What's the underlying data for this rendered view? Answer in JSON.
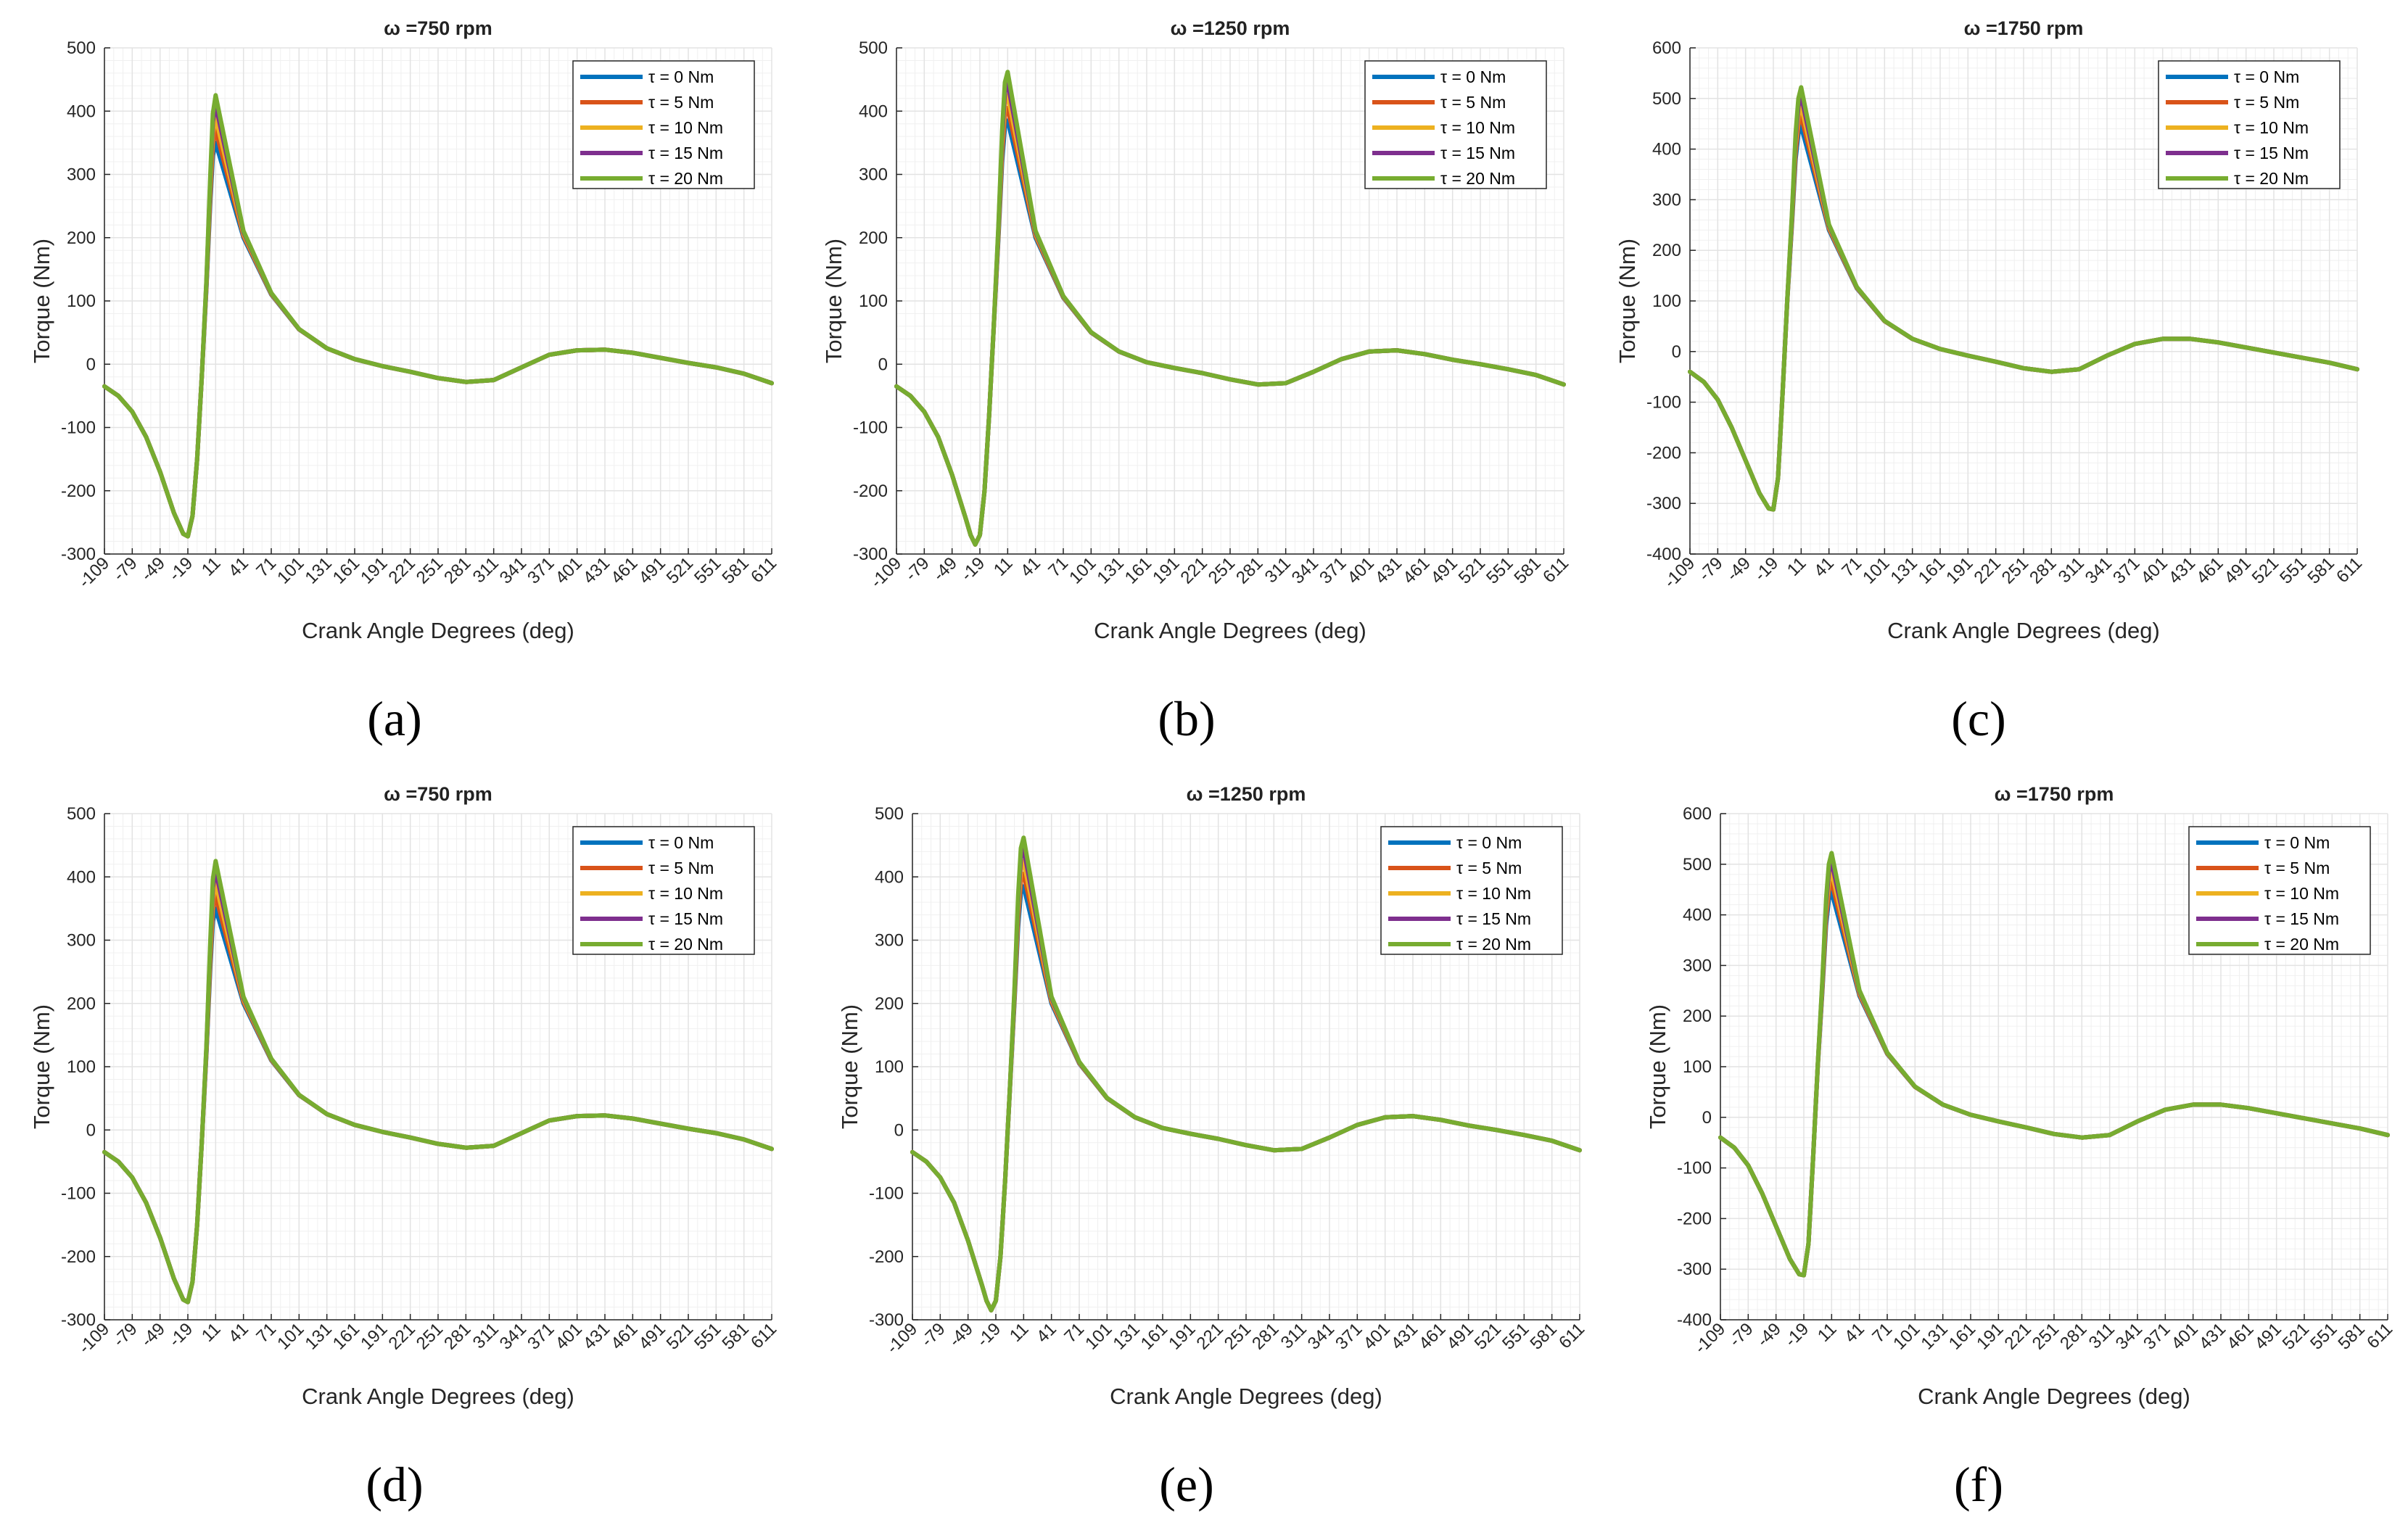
{
  "figure": {
    "captions": [
      "(a)",
      "(b)",
      "(c)",
      "(d)",
      "(e)",
      "(f)"
    ]
  },
  "colors": {
    "tau0": "#0072BD",
    "tau5": "#D95319",
    "tau10": "#EDB120",
    "tau15": "#7E2F8E",
    "tau20": "#77AC30"
  },
  "chart_data": [
    {
      "id": "a",
      "type": "line",
      "title": "ω =750 rpm",
      "omega_rpm": 750,
      "xlabel": "Crank Angle Degrees (deg)",
      "ylabel": "Torque (Nm)",
      "xlim": [
        -109,
        611
      ],
      "ylim": [
        -300,
        500
      ],
      "xticks": [
        -109,
        -79,
        -49,
        -19,
        11,
        41,
        71,
        101,
        131,
        161,
        191,
        221,
        251,
        281,
        311,
        341,
        371,
        401,
        431,
        461,
        491,
        521,
        551,
        581,
        611
      ],
      "yticks": [
        -300,
        -200,
        -100,
        0,
        100,
        200,
        300,
        400,
        500
      ],
      "grid": true,
      "legend_location": "top-right",
      "series": [
        {
          "name": "τ = 0 Nm",
          "torque_nm": 0,
          "peak": 350
        },
        {
          "name": "τ = 5 Nm",
          "torque_nm": 5,
          "peak": 370
        },
        {
          "name": "τ = 10 Nm",
          "torque_nm": 10,
          "peak": 390
        },
        {
          "name": "τ = 15 Nm",
          "torque_nm": 15,
          "peak": 410
        },
        {
          "name": "τ = 20 Nm",
          "torque_nm": 20,
          "peak": 425
        }
      ],
      "shared_curve": {
        "x": [
          -109,
          -94,
          -79,
          -64,
          -49,
          -34,
          -24,
          -19,
          -14,
          -9,
          -4,
          1,
          5,
          8,
          11
        ],
        "y": [
          -35,
          -50,
          -75,
          -115,
          -170,
          -235,
          -268,
          -272,
          -240,
          -150,
          -20,
          120,
          250,
          330,
          350
        ]
      },
      "tail": {
        "x": [
          41,
          71,
          101,
          131,
          161,
          191,
          221,
          251,
          281,
          311,
          341,
          371,
          401,
          431,
          461,
          491,
          521,
          551,
          581,
          611
        ],
        "y": [
          200,
          110,
          55,
          25,
          8,
          -3,
          -12,
          -22,
          -28,
          -25,
          -5,
          15,
          22,
          23,
          18,
          10,
          2,
          -5,
          -15,
          -30
        ]
      }
    },
    {
      "id": "b",
      "type": "line",
      "title": "ω =1250 rpm",
      "omega_rpm": 1250,
      "xlabel": "Crank Angle Degrees (deg)",
      "ylabel": "Torque (Nm)",
      "xlim": [
        -109,
        611
      ],
      "ylim": [
        -300,
        500
      ],
      "xticks": [
        -109,
        -79,
        -49,
        -19,
        11,
        41,
        71,
        101,
        131,
        161,
        191,
        221,
        251,
        281,
        311,
        341,
        371,
        401,
        431,
        461,
        491,
        521,
        551,
        581,
        611
      ],
      "yticks": [
        -300,
        -200,
        -100,
        0,
        100,
        200,
        300,
        400,
        500
      ],
      "grid": true,
      "legend_location": "top-right",
      "series": [
        {
          "name": "τ = 0 Nm",
          "torque_nm": 0,
          "peak": 385
        },
        {
          "name": "τ = 5 Nm",
          "torque_nm": 5,
          "peak": 405
        },
        {
          "name": "τ = 10 Nm",
          "torque_nm": 10,
          "peak": 425
        },
        {
          "name": "τ = 15 Nm",
          "torque_nm": 15,
          "peak": 445
        },
        {
          "name": "τ = 20 Nm",
          "torque_nm": 20,
          "peak": 462
        }
      ],
      "shared_curve": {
        "x": [
          -109,
          -94,
          -79,
          -64,
          -49,
          -34,
          -29,
          -24,
          -19,
          -14,
          -9,
          -4,
          1,
          5,
          8,
          11
        ],
        "y": [
          -35,
          -50,
          -75,
          -115,
          -175,
          -245,
          -270,
          -285,
          -270,
          -200,
          -80,
          60,
          200,
          320,
          375,
          385
        ]
      },
      "tail": {
        "x": [
          41,
          71,
          101,
          131,
          161,
          191,
          221,
          251,
          281,
          311,
          341,
          371,
          401,
          431,
          461,
          491,
          521,
          551,
          581,
          611
        ],
        "y": [
          200,
          105,
          50,
          20,
          3,
          -6,
          -14,
          -24,
          -32,
          -30,
          -12,
          8,
          20,
          22,
          16,
          7,
          0,
          -8,
          -17,
          -32
        ]
      }
    },
    {
      "id": "c",
      "type": "line",
      "title": "ω =1750 rpm",
      "omega_rpm": 1750,
      "xlabel": "Crank Angle Degrees (deg)",
      "ylabel": "Torque (Nm)",
      "xlim": [
        -109,
        611
      ],
      "ylim": [
        -400,
        600
      ],
      "xticks": [
        -109,
        -79,
        -49,
        -19,
        11,
        41,
        71,
        101,
        131,
        161,
        191,
        221,
        251,
        281,
        311,
        341,
        371,
        401,
        431,
        461,
        491,
        521,
        551,
        581,
        611
      ],
      "yticks": [
        -400,
        -300,
        -200,
        -100,
        0,
        100,
        200,
        300,
        400,
        500,
        600
      ],
      "grid": true,
      "legend_location": "top-right",
      "series": [
        {
          "name": "τ = 0 Nm",
          "torque_nm": 0,
          "peak": 445
        },
        {
          "name": "τ = 5 Nm",
          "torque_nm": 5,
          "peak": 465
        },
        {
          "name": "τ = 10 Nm",
          "torque_nm": 10,
          "peak": 485
        },
        {
          "name": "τ = 15 Nm",
          "torque_nm": 15,
          "peak": 505
        },
        {
          "name": "τ = 20 Nm",
          "torque_nm": 20,
          "peak": 522
        }
      ],
      "shared_curve": {
        "x": [
          -109,
          -94,
          -79,
          -64,
          -49,
          -34,
          -24,
          -19,
          -14,
          -9,
          -4,
          1,
          5,
          8,
          11
        ],
        "y": [
          -40,
          -60,
          -95,
          -150,
          -215,
          -280,
          -310,
          -312,
          -250,
          -80,
          100,
          250,
          380,
          430,
          445
        ]
      },
      "tail": {
        "x": [
          41,
          71,
          101,
          131,
          161,
          191,
          221,
          251,
          281,
          311,
          341,
          371,
          401,
          431,
          461,
          491,
          521,
          551,
          581,
          611
        ],
        "y": [
          240,
          125,
          60,
          25,
          5,
          -8,
          -20,
          -33,
          -40,
          -35,
          -8,
          15,
          25,
          25,
          18,
          8,
          -2,
          -12,
          -22,
          -35
        ]
      }
    },
    {
      "id": "d",
      "type": "line",
      "title": "ω =750 rpm",
      "omega_rpm": 750,
      "xlabel": "Crank Angle Degrees (deg)",
      "ylabel": "Torque (Nm)",
      "xlim": [
        -109,
        611
      ],
      "ylim": [
        -300,
        500
      ],
      "xticks": [
        -109,
        -79,
        -49,
        -19,
        11,
        41,
        71,
        101,
        131,
        161,
        191,
        221,
        251,
        281,
        311,
        341,
        371,
        401,
        431,
        461,
        491,
        521,
        551,
        581,
        611
      ],
      "yticks": [
        -300,
        -200,
        -100,
        0,
        100,
        200,
        300,
        400,
        500
      ],
      "grid": true,
      "legend_location": "top-right",
      "series": [
        {
          "name": "τ = 0 Nm",
          "torque_nm": 0,
          "peak": 350
        },
        {
          "name": "τ = 5 Nm",
          "torque_nm": 5,
          "peak": 370
        },
        {
          "name": "τ = 10 Nm",
          "torque_nm": 10,
          "peak": 390
        },
        {
          "name": "τ = 15 Nm",
          "torque_nm": 15,
          "peak": 410
        },
        {
          "name": "τ = 20 Nm",
          "torque_nm": 20,
          "peak": 425
        }
      ],
      "shared_curve": {
        "x": [
          -109,
          -94,
          -79,
          -64,
          -49,
          -34,
          -24,
          -19,
          -14,
          -9,
          -4,
          1,
          5,
          8,
          11
        ],
        "y": [
          -35,
          -50,
          -75,
          -115,
          -170,
          -235,
          -268,
          -272,
          -240,
          -150,
          -20,
          120,
          250,
          330,
          350
        ]
      },
      "tail": {
        "x": [
          41,
          71,
          101,
          131,
          161,
          191,
          221,
          251,
          281,
          311,
          341,
          371,
          401,
          431,
          461,
          491,
          521,
          551,
          581,
          611
        ],
        "y": [
          200,
          110,
          55,
          25,
          8,
          -3,
          -12,
          -22,
          -28,
          -25,
          -5,
          15,
          22,
          23,
          18,
          10,
          2,
          -5,
          -15,
          -30
        ]
      }
    },
    {
      "id": "e",
      "type": "line",
      "title": "ω =1250 rpm",
      "omega_rpm": 1250,
      "xlabel": "Crank Angle Degrees (deg)",
      "ylabel": "Torque (Nm)",
      "xlim": [
        -109,
        611
      ],
      "ylim": [
        -300,
        500
      ],
      "xticks": [
        -109,
        -79,
        -49,
        -19,
        11,
        41,
        71,
        101,
        131,
        161,
        191,
        221,
        251,
        281,
        311,
        341,
        371,
        401,
        431,
        461,
        491,
        521,
        551,
        581,
        611
      ],
      "yticks": [
        -300,
        -200,
        -100,
        0,
        100,
        200,
        300,
        400,
        500
      ],
      "grid": true,
      "legend_location": "top-right",
      "series": [
        {
          "name": "τ = 0 Nm",
          "torque_nm": 0,
          "peak": 385
        },
        {
          "name": "τ = 5 Nm",
          "torque_nm": 5,
          "peak": 405
        },
        {
          "name": "τ = 10 Nm",
          "torque_nm": 10,
          "peak": 425
        },
        {
          "name": "τ = 15 Nm",
          "torque_nm": 15,
          "peak": 445
        },
        {
          "name": "τ = 20 Nm",
          "torque_nm": 20,
          "peak": 462
        }
      ],
      "shared_curve": {
        "x": [
          -109,
          -94,
          -79,
          -64,
          -49,
          -34,
          -29,
          -24,
          -19,
          -14,
          -9,
          -4,
          1,
          5,
          8,
          11
        ],
        "y": [
          -35,
          -50,
          -75,
          -115,
          -175,
          -245,
          -270,
          -285,
          -270,
          -200,
          -80,
          60,
          200,
          320,
          375,
          385
        ]
      },
      "tail": {
        "x": [
          41,
          71,
          101,
          131,
          161,
          191,
          221,
          251,
          281,
          311,
          341,
          371,
          401,
          431,
          461,
          491,
          521,
          551,
          581,
          611
        ],
        "y": [
          200,
          105,
          50,
          20,
          3,
          -6,
          -14,
          -24,
          -32,
          -30,
          -12,
          8,
          20,
          22,
          16,
          7,
          0,
          -8,
          -17,
          -32
        ]
      }
    },
    {
      "id": "f",
      "type": "line",
      "title": "ω =1750 rpm",
      "omega_rpm": 1750,
      "xlabel": "Crank Angle Degrees (deg)",
      "ylabel": "Torque (Nm)",
      "xlim": [
        -109,
        611
      ],
      "ylim": [
        -400,
        600
      ],
      "xticks": [
        -109,
        -79,
        -49,
        -19,
        11,
        41,
        71,
        101,
        131,
        161,
        191,
        221,
        251,
        281,
        311,
        341,
        371,
        401,
        431,
        461,
        491,
        521,
        551,
        581,
        611
      ],
      "yticks": [
        -400,
        -300,
        -200,
        -100,
        0,
        100,
        200,
        300,
        400,
        500,
        600
      ],
      "grid": true,
      "legend_location": "top-right",
      "series": [
        {
          "name": "τ = 0 Nm",
          "torque_nm": 0,
          "peak": 445
        },
        {
          "name": "τ = 5 Nm",
          "torque_nm": 5,
          "peak": 465
        },
        {
          "name": "τ = 10 Nm",
          "torque_nm": 10,
          "peak": 485
        },
        {
          "name": "τ = 15 Nm",
          "torque_nm": 15,
          "peak": 505
        },
        {
          "name": "τ = 20 Nm",
          "torque_nm": 20,
          "peak": 522
        }
      ],
      "shared_curve": {
        "x": [
          -109,
          -94,
          -79,
          -64,
          -49,
          -34,
          -24,
          -19,
          -14,
          -9,
          -4,
          1,
          5,
          8,
          11
        ],
        "y": [
          -40,
          -60,
          -95,
          -150,
          -215,
          -280,
          -310,
          -312,
          -250,
          -80,
          100,
          250,
          380,
          430,
          445
        ]
      },
      "tail": {
        "x": [
          41,
          71,
          101,
          131,
          161,
          191,
          221,
          251,
          281,
          311,
          341,
          371,
          401,
          431,
          461,
          491,
          521,
          551,
          581,
          611
        ],
        "y": [
          240,
          125,
          60,
          25,
          5,
          -8,
          -20,
          -33,
          -40,
          -35,
          -8,
          15,
          25,
          25,
          18,
          8,
          -2,
          -12,
          -22,
          -35
        ]
      }
    }
  ]
}
